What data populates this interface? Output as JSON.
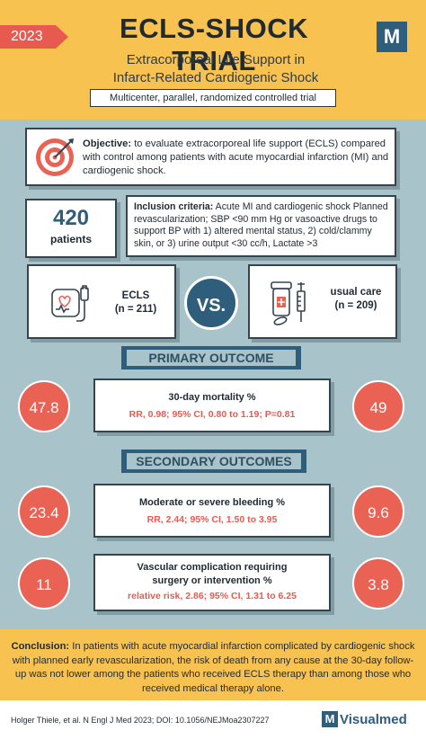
{
  "header": {
    "year": "2023",
    "title": "ECLS-SHOCK TRIAL",
    "subtitle_line1": "Extracorporeal Life Support in",
    "subtitle_line2": "Infarct-Related Cardiogenic Shock",
    "design": "Multicenter, parallel, randomized controlled trial",
    "logo_letter": "M"
  },
  "objective": {
    "label": "Objective:",
    "text": " to evaluate extracorporeal life support (ECLS) compared with control among patients with acute myocardial infarction (MI) and cardiogenic shock.",
    "icon": "target-icon"
  },
  "patients": {
    "count": "420",
    "label": "patients"
  },
  "inclusion": {
    "label": "Inclusion criteria:",
    "text": " Acute MI and cardiogenic shock Planned revascularization; SBP <90 mm Hg or vasoactive drugs to support BP with 1) altered mental status, 2) cold/clammy skin, or 3) urine output <30 cc/h, Lactate >3"
  },
  "arms": {
    "ecls": {
      "name": "ECLS",
      "n": "(n = 211)",
      "icon": "ecls-machine-icon"
    },
    "care": {
      "name": "usual care",
      "n": "(n = 209)",
      "icon": "medication-syringe-icon"
    },
    "vs": "VS."
  },
  "primary": {
    "heading": "PRIMARY OUTCOME",
    "title": "30-day mortality  %",
    "stat": "RR, 0.98; 95% CI, 0.80 to 1.19; P=0.81",
    "ecls_value": "47.8",
    "care_value": "49"
  },
  "secondary": {
    "heading": "SECONDARY OUTCOMES",
    "items": [
      {
        "title": "Moderate or severe bleeding %",
        "title2": "",
        "stat": "RR, 2.44; 95% CI, 1.50 to 3.95",
        "ecls_value": "23.4",
        "care_value": "9.6"
      },
      {
        "title": "Vascular complication requiring",
        "title2": "surgery or intervention %",
        "stat": "relative risk, 2.86; 95% CI, 1.31 to 6.25",
        "ecls_value": "11",
        "care_value": "3.8"
      }
    ]
  },
  "conclusion": {
    "label": "Conclusion:",
    "text": " In patients with acute myocardial infarction complicated by cardiogenic shock with planned early revascularization, the risk of death from any cause at the 30-day follow-up was not lower among the patients who received ECLS therapy than among those who received medical therapy alone."
  },
  "footer": {
    "citation": "Holger Thiele,  et al.  N Engl J Med 2023; DOI: 10.1056/NEJMoa2307227",
    "brand_letter": "M",
    "brand_name": "Visualmed"
  },
  "colors": {
    "accent_yellow": "#f8c251",
    "accent_red": "#e96254",
    "navy": "#2f5e7c",
    "background": "#a9c3ca"
  }
}
